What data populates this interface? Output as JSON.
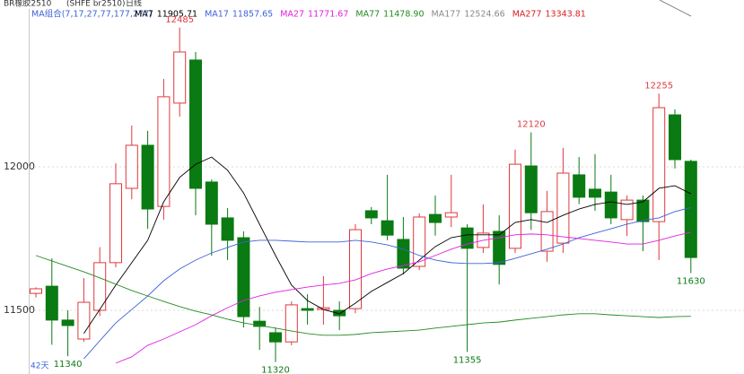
{
  "chart_data": {
    "type": "candlestick",
    "title": "BR橡胶2510",
    "subtitle": "(SHFE br2510)",
    "period": "日线",
    "ma_group": "MA组合(7,17,27,77,177,277)",
    "days_label": "42天",
    "ylim": [
      11300,
      12503
    ],
    "yticks": [
      12000,
      11500
    ],
    "grid": true,
    "up_color": "#e0393e",
    "down_color": "#0a7a12",
    "open": [
      11559,
      11584,
      11466,
      11400,
      11500,
      11666,
      11925,
      12075,
      11862,
      12222,
      12372,
      11947,
      11822,
      11753,
      11462,
      11422,
      11390,
      11506,
      11503,
      11500,
      11506,
      11847,
      11812,
      11747,
      11653,
      11834,
      11825,
      11787,
      11719,
      11775,
      11716,
      12003,
      11706,
      11734,
      11972,
      11922,
      11912,
      11816,
      11884,
      11809,
      12181,
      12019
    ],
    "high": [
      11580,
      11681,
      11500,
      11612,
      11720,
      12012,
      12144,
      12125,
      12306,
      12485,
      12400,
      11956,
      11856,
      11775,
      11512,
      11440,
      11531,
      11556,
      11619,
      11531,
      11800,
      11860,
      11972,
      11825,
      11838,
      11900,
      11972,
      11800,
      11869,
      11831,
      12060,
      12120,
      11916,
      12066,
      12034,
      12044,
      11972,
      11900,
      11900,
      12255,
      12200,
      12025
    ],
    "low": [
      11545,
      11380,
      11340,
      11390,
      11480,
      11650,
      11887,
      11784,
      11816,
      12175,
      11831,
      11690,
      11675,
      11440,
      11362,
      11320,
      11378,
      11450,
      11450,
      11431,
      11490,
      11800,
      11744,
      11625,
      11640,
      11760,
      11790,
      11355,
      11700,
      11590,
      11700,
      11780,
      11669,
      11700,
      11870,
      11847,
      11800,
      11759,
      11706,
      11675,
      11994,
      11630
    ],
    "close": [
      11575,
      11466,
      11447,
      11528,
      11666,
      11941,
      12075,
      11853,
      12244,
      12400,
      11925,
      11800,
      11744,
      11478,
      11444,
      11390,
      11519,
      11500,
      11509,
      11481,
      11781,
      11822,
      11762,
      11647,
      11825,
      11806,
      11840,
      11716,
      11769,
      11660,
      12009,
      11840,
      11844,
      11978,
      11894,
      11894,
      11822,
      11884,
      11809,
      12206,
      12025,
      11684
    ],
    "series": [
      {
        "name": "MA7",
        "color": "#000000",
        "last": "11905.71",
        "values": [
          null,
          null,
          null,
          11419,
          11503,
          11588,
          11666,
          11744,
          11878,
          11963,
          12009,
          12034,
          11988,
          11909,
          11800,
          11691,
          11588,
          11534,
          11503,
          11488,
          11525,
          11566,
          11597,
          11628,
          11675,
          11722,
          11753,
          11763,
          11763,
          11763,
          11806,
          11816,
          11806,
          11831,
          11853,
          11869,
          11878,
          11869,
          11878,
          11925,
          11934,
          11906
        ]
      },
      {
        "name": "MA17",
        "color": "#3d63d8",
        "last": "11857.65",
        "values": [
          null,
          null,
          null,
          11331,
          11394,
          11456,
          11503,
          11550,
          11603,
          11644,
          11675,
          11700,
          11719,
          11738,
          11744,
          11744,
          11741,
          11738,
          11738,
          11738,
          11744,
          11738,
          11728,
          11713,
          11691,
          11675,
          11666,
          11663,
          11663,
          11666,
          11681,
          11697,
          11713,
          11731,
          11753,
          11769,
          11784,
          11800,
          11813,
          11822,
          11844,
          11858
        ]
      },
      {
        "name": "MA27",
        "color": "#e020e0",
        "last": "11771.67",
        "values": [
          null,
          null,
          null,
          null,
          null,
          11316,
          11338,
          11378,
          11400,
          11425,
          11450,
          11481,
          11509,
          11534,
          11550,
          11563,
          11572,
          11581,
          11588,
          11594,
          11606,
          11628,
          11644,
          11656,
          11669,
          11691,
          11713,
          11731,
          11744,
          11753,
          11763,
          11766,
          11763,
          11756,
          11750,
          11744,
          11738,
          11731,
          11731,
          11744,
          11759,
          11772
        ]
      },
      {
        "name": "MA77",
        "color": "#238a23",
        "last": "11478.90",
        "values": [
          11691,
          11672,
          11653,
          11634,
          11613,
          11591,
          11569,
          11550,
          11531,
          11513,
          11497,
          11484,
          11469,
          11456,
          11447,
          11438,
          11428,
          11419,
          11413,
          11413,
          11416,
          11422,
          11425,
          11428,
          11431,
          11438,
          11444,
          11450,
          11456,
          11459,
          11466,
          11472,
          11478,
          11484,
          11488,
          11488,
          11484,
          11481,
          11478,
          11475,
          11478,
          11479
        ]
      },
      {
        "name": "MA177",
        "color": "#8a8a8a",
        "last": "12524.66"
      },
      {
        "name": "MA277",
        "color": "#d82020",
        "last": "13343.81"
      }
    ]
  }
}
